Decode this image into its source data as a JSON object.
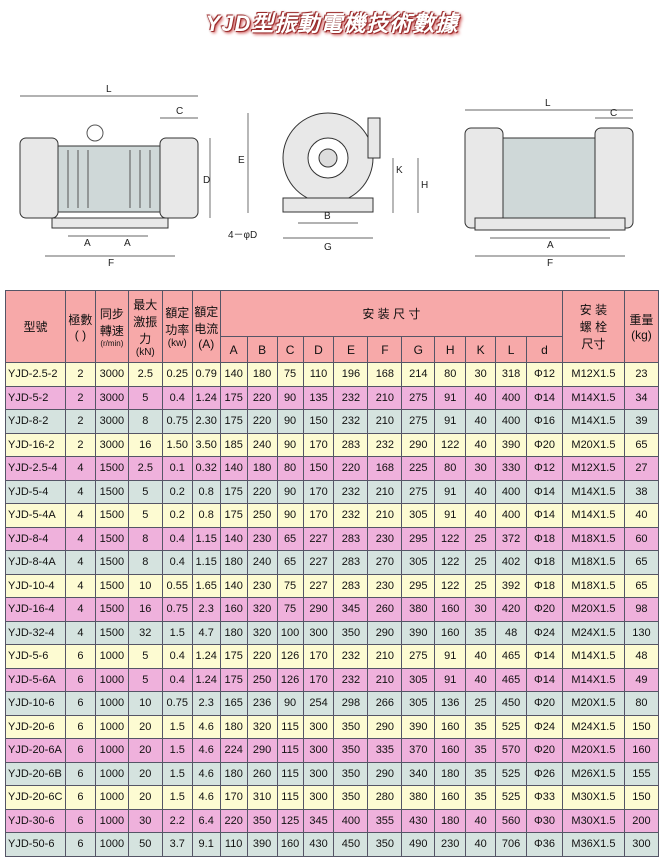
{
  "title": "YJD型振動電機技術數據",
  "diagrams": {
    "front": [
      "L",
      "C",
      "D",
      "A",
      "A",
      "F"
    ],
    "side": [
      "E",
      "K",
      "H",
      "B",
      "G",
      "4－φD"
    ],
    "top": [
      "L",
      "C",
      "A",
      "F"
    ]
  },
  "table": {
    "headers": {
      "model": "型號",
      "poles": "極數\n(  )",
      "speed": "同步\n轉速",
      "speed_unit": "(r/min)",
      "force": "最大\n激振\n力",
      "force_unit": "(kN)",
      "power": "額定\n功率",
      "power_unit": "(kw)",
      "current": "額定\n电流",
      "current_unit": "(A)",
      "install": "安 装 尺 寸",
      "dims": [
        "A",
        "B",
        "C",
        "D",
        "E",
        "F",
        "G",
        "H",
        "K",
        "L",
        "d"
      ],
      "bolt": "安 装\n螺 栓\n尺寸",
      "weight": "重量\n(kg)"
    },
    "row_colors": [
      "#fdfbd2",
      "#efb1dc",
      "#d5e3df"
    ],
    "rows": [
      [
        "YJD-2.5-2",
        "2",
        "3000",
        "2.5",
        "0.25",
        "0.79",
        "140",
        "180",
        "75",
        "110",
        "196",
        "168",
        "214",
        "80",
        "30",
        "318",
        "Φ12",
        "M12X1.5",
        "23"
      ],
      [
        "YJD-5-2",
        "2",
        "3000",
        "5",
        "0.4",
        "1.24",
        "175",
        "220",
        "90",
        "135",
        "232",
        "210",
        "275",
        "91",
        "40",
        "400",
        "Φ14",
        "M14X1.5",
        "34"
      ],
      [
        "YJD-8-2",
        "2",
        "3000",
        "8",
        "0.75",
        "2.30",
        "175",
        "220",
        "90",
        "150",
        "232",
        "210",
        "275",
        "91",
        "40",
        "400",
        "Φ16",
        "M14X1.5",
        "39"
      ],
      [
        "YJD-16-2",
        "2",
        "3000",
        "16",
        "1.50",
        "3.50",
        "185",
        "240",
        "90",
        "170",
        "283",
        "232",
        "290",
        "122",
        "40",
        "390",
        "Φ20",
        "M20X1.5",
        "65"
      ],
      [
        "YJD-2.5-4",
        "4",
        "1500",
        "2.5",
        "0.1",
        "0.32",
        "140",
        "180",
        "80",
        "150",
        "220",
        "168",
        "225",
        "80",
        "30",
        "330",
        "Φ12",
        "M12X1.5",
        "27"
      ],
      [
        "YJD-5-4",
        "4",
        "1500",
        "5",
        "0.2",
        "0.8",
        "175",
        "220",
        "90",
        "170",
        "232",
        "210",
        "275",
        "91",
        "40",
        "400",
        "Φ14",
        "M14X1.5",
        "38"
      ],
      [
        "YJD-5-4A",
        "4",
        "1500",
        "5",
        "0.2",
        "0.8",
        "175",
        "250",
        "90",
        "170",
        "232",
        "210",
        "305",
        "91",
        "40",
        "400",
        "Φ14",
        "M14X1.5",
        "40"
      ],
      [
        "YJD-8-4",
        "4",
        "1500",
        "8",
        "0.4",
        "1.15",
        "140",
        "230",
        "65",
        "227",
        "283",
        "230",
        "295",
        "122",
        "25",
        "372",
        "Φ18",
        "M18X1.5",
        "60"
      ],
      [
        "YJD-8-4A",
        "4",
        "1500",
        "8",
        "0.4",
        "1.15",
        "180",
        "240",
        "65",
        "227",
        "283",
        "270",
        "305",
        "122",
        "25",
        "402",
        "Φ18",
        "M18X1.5",
        "65"
      ],
      [
        "YJD-10-4",
        "4",
        "1500",
        "10",
        "0.55",
        "1.65",
        "140",
        "230",
        "75",
        "227",
        "283",
        "230",
        "295",
        "122",
        "25",
        "392",
        "Φ18",
        "M18X1.5",
        "65"
      ],
      [
        "YJD-16-4",
        "4",
        "1500",
        "16",
        "0.75",
        "2.3",
        "160",
        "320",
        "75",
        "290",
        "345",
        "260",
        "380",
        "160",
        "30",
        "420",
        "Φ20",
        "M20X1.5",
        "98"
      ],
      [
        "YJD-32-4",
        "4",
        "1500",
        "32",
        "1.5",
        "4.7",
        "180",
        "320",
        "100",
        "300",
        "350",
        "290",
        "390",
        "160",
        "35",
        "48",
        "Φ24",
        "M24X1.5",
        "130"
      ],
      [
        "YJD-5-6",
        "6",
        "1000",
        "5",
        "0.4",
        "1.24",
        "175",
        "220",
        "126",
        "170",
        "232",
        "210",
        "275",
        "91",
        "40",
        "465",
        "Φ14",
        "M14X1.5",
        "48"
      ],
      [
        "YJD-5-6A",
        "6",
        "1000",
        "5",
        "0.4",
        "1.24",
        "175",
        "250",
        "126",
        "170",
        "232",
        "210",
        "305",
        "91",
        "40",
        "465",
        "Φ14",
        "M14X1.5",
        "49"
      ],
      [
        "YJD-10-6",
        "6",
        "1000",
        "10",
        "0.75",
        "2.3",
        "165",
        "236",
        "90",
        "254",
        "298",
        "266",
        "305",
        "136",
        "25",
        "450",
        "Φ20",
        "M20X1.5",
        "80"
      ],
      [
        "YJD-20-6",
        "6",
        "1000",
        "20",
        "1.5",
        "4.6",
        "180",
        "320",
        "115",
        "300",
        "350",
        "290",
        "390",
        "160",
        "35",
        "525",
        "Φ24",
        "M24X1.5",
        "150"
      ],
      [
        "YJD-20-6A",
        "6",
        "1000",
        "20",
        "1.5",
        "4.6",
        "224",
        "290",
        "115",
        "300",
        "350",
        "335",
        "370",
        "160",
        "35",
        "570",
        "Φ20",
        "M20X1.5",
        "160"
      ],
      [
        "YJD-20-6B",
        "6",
        "1000",
        "20",
        "1.5",
        "4.6",
        "180",
        "260",
        "115",
        "300",
        "350",
        "290",
        "340",
        "180",
        "35",
        "525",
        "Φ26",
        "M26X1.5",
        "155"
      ],
      [
        "YJD-20-6C",
        "6",
        "1000",
        "20",
        "1.5",
        "4.6",
        "170",
        "310",
        "115",
        "300",
        "350",
        "280",
        "380",
        "160",
        "35",
        "525",
        "Φ33",
        "M30X1.5",
        "150"
      ],
      [
        "YJD-30-6",
        "6",
        "1000",
        "30",
        "2.2",
        "6.4",
        "220",
        "350",
        "125",
        "345",
        "400",
        "355",
        "430",
        "180",
        "40",
        "560",
        "Φ30",
        "M30X1.5",
        "200"
      ],
      [
        "YJD-50-6",
        "6",
        "1000",
        "50",
        "3.7",
        "9.1",
        "110",
        "390",
        "160",
        "430",
        "450",
        "350",
        "490",
        "230",
        "40",
        "706",
        "Φ36",
        "M36X1.5",
        "300"
      ]
    ]
  }
}
